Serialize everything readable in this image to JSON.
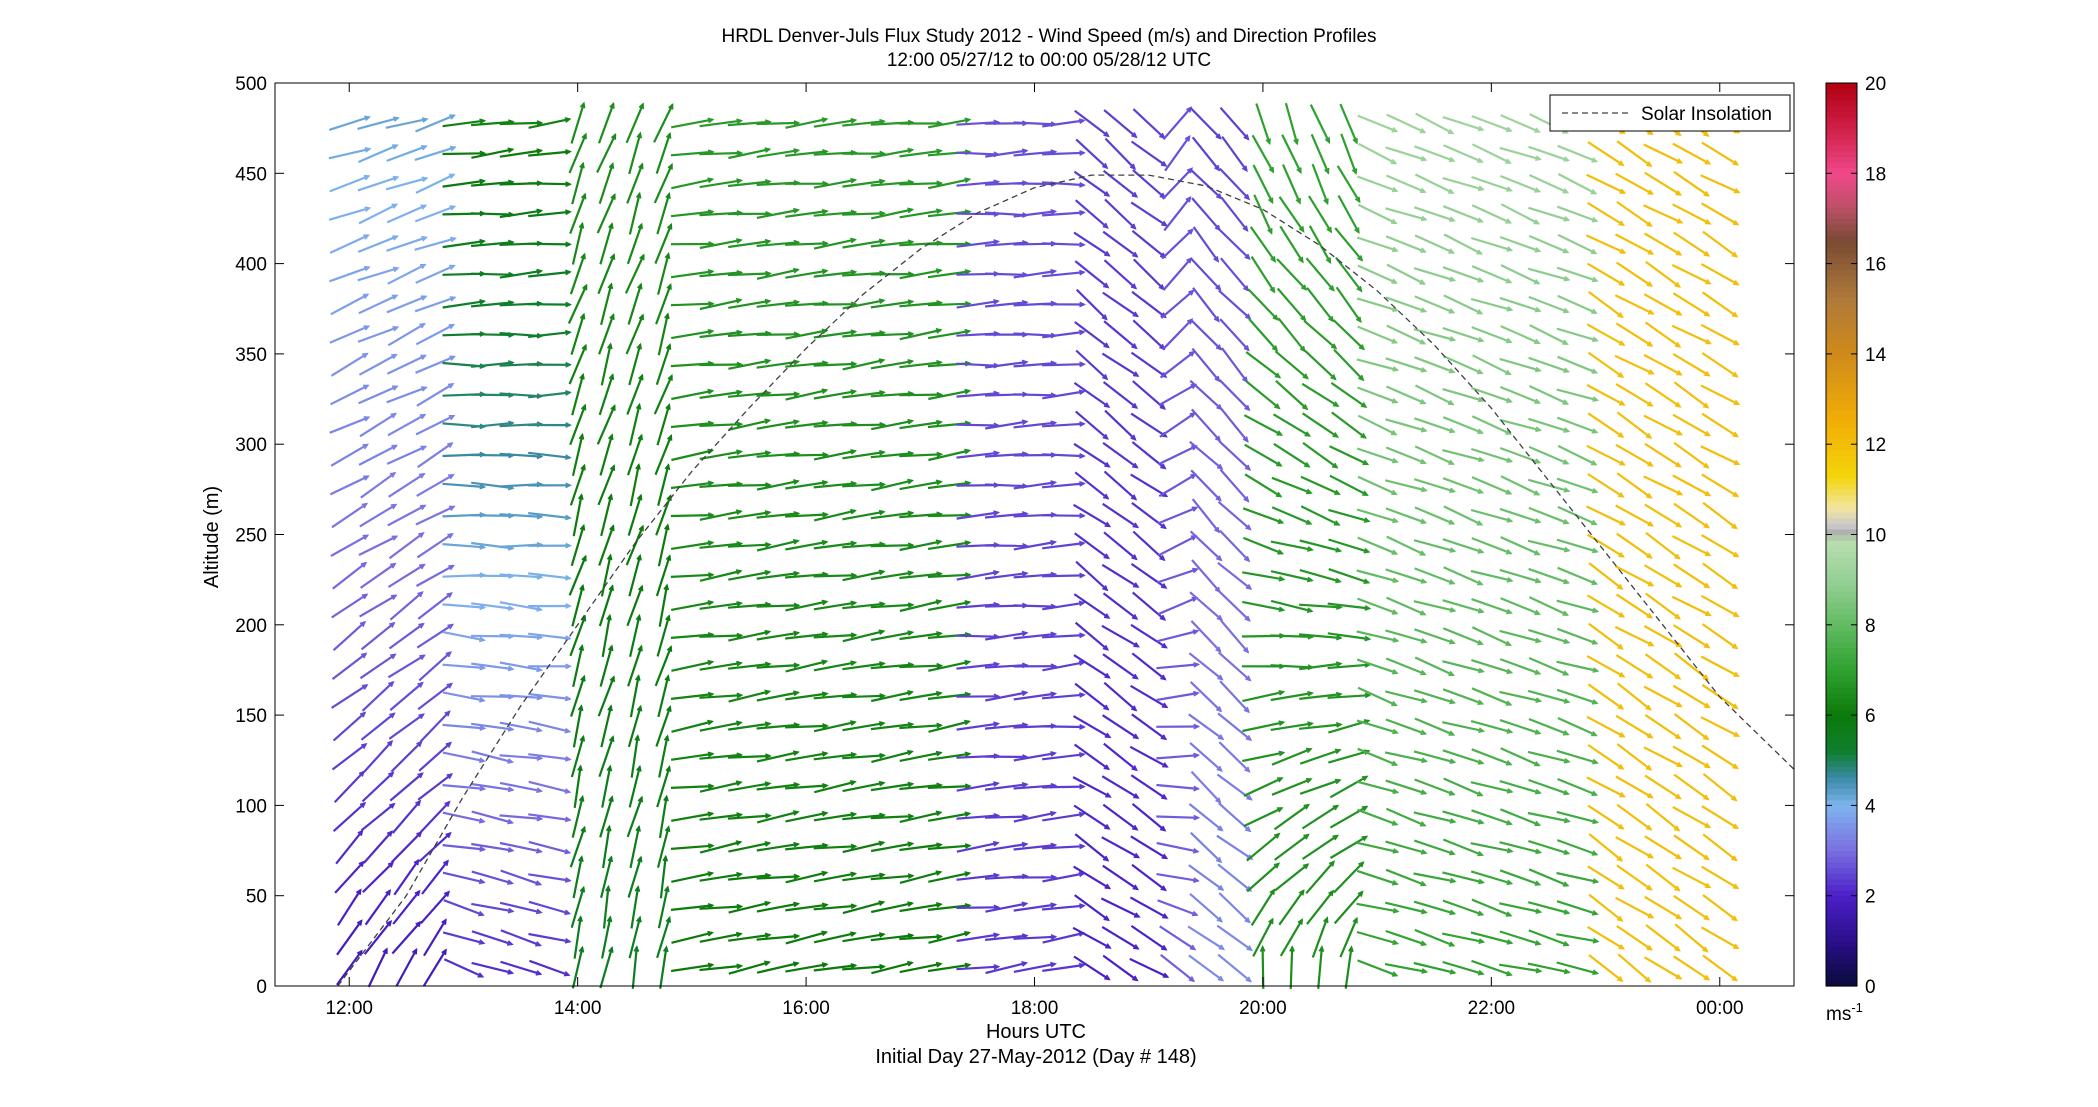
{
  "chart_data": {
    "type": "quiver",
    "title": "HRDL Denver-Juls Flux Study 2012 - Wind Speed (m/s) and Direction Profiles",
    "subtitle": "12:00 05/27/12 to 00:00 05/28/12  UTC",
    "xlabel": "Hours UTC",
    "xlabel2": "Initial Day 27-May-2012 (Day # 148)",
    "ylabel": "Altitude (m)",
    "xlim": [
      11.35,
      24.65
    ],
    "ylim": [
      0,
      500
    ],
    "x_ticks": [
      12,
      14,
      16,
      18,
      20,
      22,
      24
    ],
    "x_tick_labels": [
      "12:00",
      "14:00",
      "16:00",
      "18:00",
      "20:00",
      "22:00",
      "00:00"
    ],
    "y_ticks": [
      0,
      50,
      100,
      150,
      200,
      250,
      300,
      350,
      400,
      450,
      500
    ],
    "y_tick_labels": [
      "0",
      "50",
      "100",
      "150",
      "200",
      "250",
      "300",
      "350",
      "400",
      "450",
      "500"
    ],
    "colorbar": {
      "range": [
        0,
        20
      ],
      "ticks": [
        0,
        2,
        4,
        6,
        8,
        10,
        12,
        14,
        16,
        18,
        20
      ],
      "tick_labels": [
        "0",
        "2",
        "4",
        "6",
        "8",
        "10",
        "12",
        "14",
        "16",
        "18",
        "20"
      ],
      "unit_label": "ms",
      "unit_exponent": "-1",
      "stops": [
        {
          "v": 0,
          "color": "#0a0a3a"
        },
        {
          "v": 1,
          "color": "#2a0f8a"
        },
        {
          "v": 2,
          "color": "#4b1fc8"
        },
        {
          "v": 3,
          "color": "#7a6fe0"
        },
        {
          "v": 4,
          "color": "#7fb4ef"
        },
        {
          "v": 4.6,
          "color": "#3c8aa8"
        },
        {
          "v": 5.2,
          "color": "#0f7f2f"
        },
        {
          "v": 6,
          "color": "#0b7a0b"
        },
        {
          "v": 7,
          "color": "#2fa12f"
        },
        {
          "v": 8,
          "color": "#62bb62"
        },
        {
          "v": 9,
          "color": "#96d096"
        },
        {
          "v": 9.9,
          "color": "#b9dfb0"
        },
        {
          "v": 10,
          "color": "#a6a6a6"
        },
        {
          "v": 10.2,
          "color": "#c8c8c8"
        },
        {
          "v": 10.6,
          "color": "#f2e6a0"
        },
        {
          "v": 11.3,
          "color": "#f3d40a"
        },
        {
          "v": 12.5,
          "color": "#f2ae06"
        },
        {
          "v": 14,
          "color": "#cf8a1a"
        },
        {
          "v": 15.2,
          "color": "#b07b3a"
        },
        {
          "v": 16.5,
          "color": "#7a4b34"
        },
        {
          "v": 17.3,
          "color": "#c0506a"
        },
        {
          "v": 18,
          "color": "#f0488a"
        },
        {
          "v": 19,
          "color": "#d02048"
        },
        {
          "v": 20,
          "color": "#b00010"
        }
      ]
    },
    "legend": {
      "label": "Solar Insolation",
      "placement": "top-right",
      "line_color": "#404040"
    },
    "solar_insolation": {
      "x": [
        11.9,
        12.5,
        13.0,
        13.5,
        14.0,
        14.5,
        15.0,
        15.5,
        16.0,
        16.5,
        17.0,
        17.5,
        18.0,
        18.5,
        19.0,
        19.5,
        20.0,
        20.5,
        21.0,
        21.5,
        22.0,
        22.5,
        23.0,
        23.5,
        24.0,
        24.65
      ],
      "y": [
        0,
        50,
        105,
        155,
        200,
        245,
        285,
        320,
        353,
        383,
        408,
        428,
        442,
        449,
        449,
        443,
        430,
        410,
        385,
        355,
        320,
        280,
        240,
        200,
        160,
        120
      ]
    },
    "wind_field": {
      "times_start": 12.0,
      "times_step": 0.25,
      "times_count": 49,
      "altitudes_start": 10,
      "altitudes_step": 16.7,
      "altitudes_count": 29,
      "columns": [
        {
          "t": 12.0,
          "speed": [
            1.5,
            1.8,
            2.0,
            2.0,
            2.2,
            2.4,
            2.6,
            2.8,
            3.0,
            3.0,
            3.2,
            3.3,
            3.4,
            3.5,
            3.6,
            3.6,
            3.7,
            3.7,
            3.8,
            3.8,
            3.8,
            3.9,
            3.9,
            3.9,
            4.0,
            4.0,
            4.0,
            4.0,
            3.9
          ],
          "dir_deg": [
            85,
            80,
            70,
            60,
            55,
            50,
            45,
            40,
            35,
            35,
            30,
            28,
            26,
            25,
            24,
            22,
            20,
            20,
            18,
            18,
            16,
            16,
            15,
            15,
            14,
            14,
            13,
            12,
            12
          ]
        }
      ],
      "regime_note": "Per-time profiles of speed (m/s) and heading (deg, 0 = east, 90 = north); full field synthesized in script from regime table",
      "regimes": [
        {
          "from": 12.0,
          "to": 12.9,
          "speed_low": 1.8,
          "speed_high": 4.2,
          "dir_low": 60,
          "dir_high": 18
        },
        {
          "from": 12.9,
          "to": 13.9,
          "speed_low": 2.2,
          "speed_high": 6.2,
          "dir_low": -20,
          "dir_high": 6
        },
        {
          "from": 13.9,
          "to": 14.9,
          "speed_low": 5.5,
          "speed_high": 6.5,
          "dir_low": 80,
          "dir_high": 70
        },
        {
          "from": 14.9,
          "to": 17.4,
          "speed_low": 6.0,
          "speed_high": 6.8,
          "dir_low": 10,
          "dir_high": 6
        },
        {
          "from": 17.4,
          "to": 18.4,
          "speed_low": 2.3,
          "speed_high": 2.6,
          "dir_low": 8,
          "dir_high": 2
        },
        {
          "from": 18.4,
          "to": 19.1,
          "speed_low": 2.0,
          "speed_high": 2.4,
          "dir_low": -30,
          "dir_high": -40
        },
        {
          "from": 19.1,
          "to": 19.5,
          "speed_low": 2.8,
          "speed_high": 2.6,
          "dir_low": -40,
          "dir_high": 55
        },
        {
          "from": 19.5,
          "to": 20.0,
          "speed_low": 3.4,
          "speed_high": 2.4,
          "dir_low": -35,
          "dir_high": -50
        },
        {
          "from": 20.0,
          "to": 20.9,
          "speed_low": 6.5,
          "speed_high": 7.0,
          "dir_low": 85,
          "dir_high": -70
        },
        {
          "from": 20.9,
          "to": 22.9,
          "speed_low": 7.0,
          "speed_high": 9.2,
          "dir_low": -15,
          "dir_high": -22
        },
        {
          "from": 22.9,
          "to": 24.1,
          "speed_low": 12.0,
          "speed_high": 12.0,
          "dir_low": -35,
          "dir_high": -30
        }
      ]
    }
  }
}
